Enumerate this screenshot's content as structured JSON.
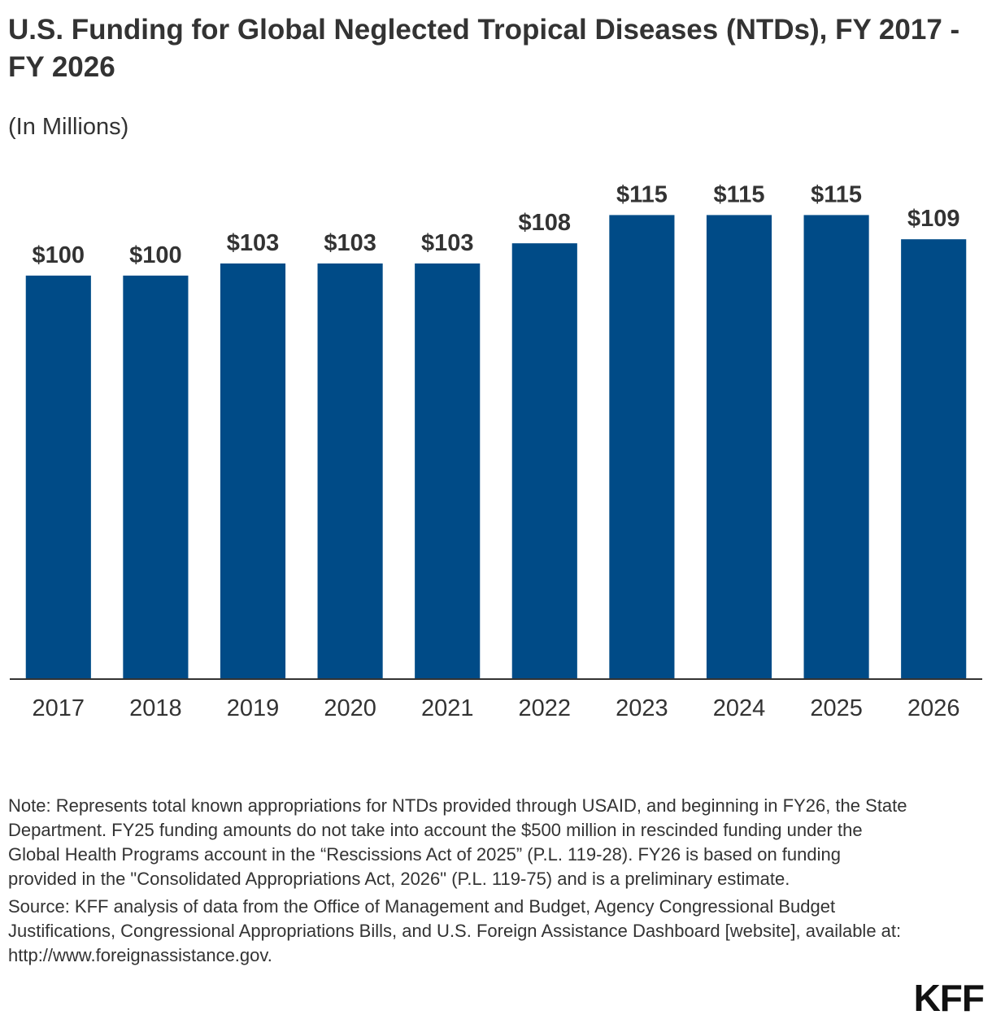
{
  "title": "U.S. Funding for Global Neglected Tropical Diseases (NTDs), FY 2017 - FY 2026",
  "subtitle": "(In Millions)",
  "chart_data": {
    "type": "bar",
    "categories": [
      "2017",
      "2018",
      "2019",
      "2020",
      "2021",
      "2022",
      "2023",
      "2024",
      "2025",
      "2026"
    ],
    "values": [
      100,
      100,
      103,
      103,
      103,
      108,
      115,
      115,
      115,
      109
    ],
    "data_labels": [
      "$100",
      "$100",
      "$103",
      "$103",
      "$103",
      "$108",
      "$115",
      "$115",
      "$115",
      "$109"
    ],
    "title": "U.S. Funding for Global Neglected Tropical Diseases (NTDs), FY 2017 - FY 2026",
    "subtitle": "(In Millions)",
    "ylim": [
      0,
      130
    ],
    "grid": false,
    "bar_color": "#004b87"
  },
  "note": "Note: Represents total known appropriations for NTDs provided through USAID, and beginning in FY26, the State Department. FY25 funding amounts do not take into account the $500 million in rescinded funding under the Global Health Programs account in the “Rescissions Act of 2025” (P.L. 119-28). FY26 is based on funding provided in the \"Consolidated Appropriations Act, 2026\" (P.L. 119-75) and is a preliminary estimate.",
  "source": "Source: KFF analysis of data from the Office of Management and Budget, Agency Congressional Budget Justifications, Congressional Appropriations Bills, and U.S. Foreign Assistance Dashboard [website], available at: http://www.foreignassistance.gov.",
  "logo": "KFF",
  "colors": {
    "bar": "#004b87",
    "text": "#333333",
    "axis": "#333333"
  }
}
